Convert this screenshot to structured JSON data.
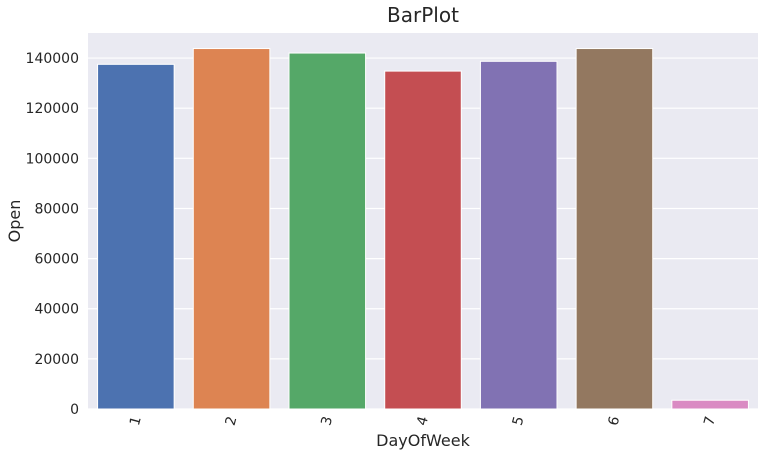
{
  "chart_data": {
    "type": "bar",
    "title": "BarPlot",
    "xlabel": "DayOfWeek",
    "ylabel": "Open",
    "categories": [
      "1",
      "2",
      "3",
      "4",
      "5",
      "6",
      "7"
    ],
    "values": [
      137500,
      143800,
      142000,
      134800,
      138700,
      143800,
      3500
    ],
    "ylim": [
      0,
      150000
    ],
    "yticks": [
      0,
      20000,
      40000,
      60000,
      80000,
      100000,
      120000,
      140000
    ],
    "ytick_labels": [
      "0",
      "20000",
      "40000",
      "60000",
      "80000",
      "100000",
      "120000",
      "140000"
    ],
    "colors": [
      "#4c72b0",
      "#dd8452",
      "#55a868",
      "#c44e52",
      "#8172b3",
      "#937860",
      "#da8bc3"
    ],
    "grid": true,
    "background": "#eaeaf2",
    "xtick_rotation": "rotated"
  }
}
